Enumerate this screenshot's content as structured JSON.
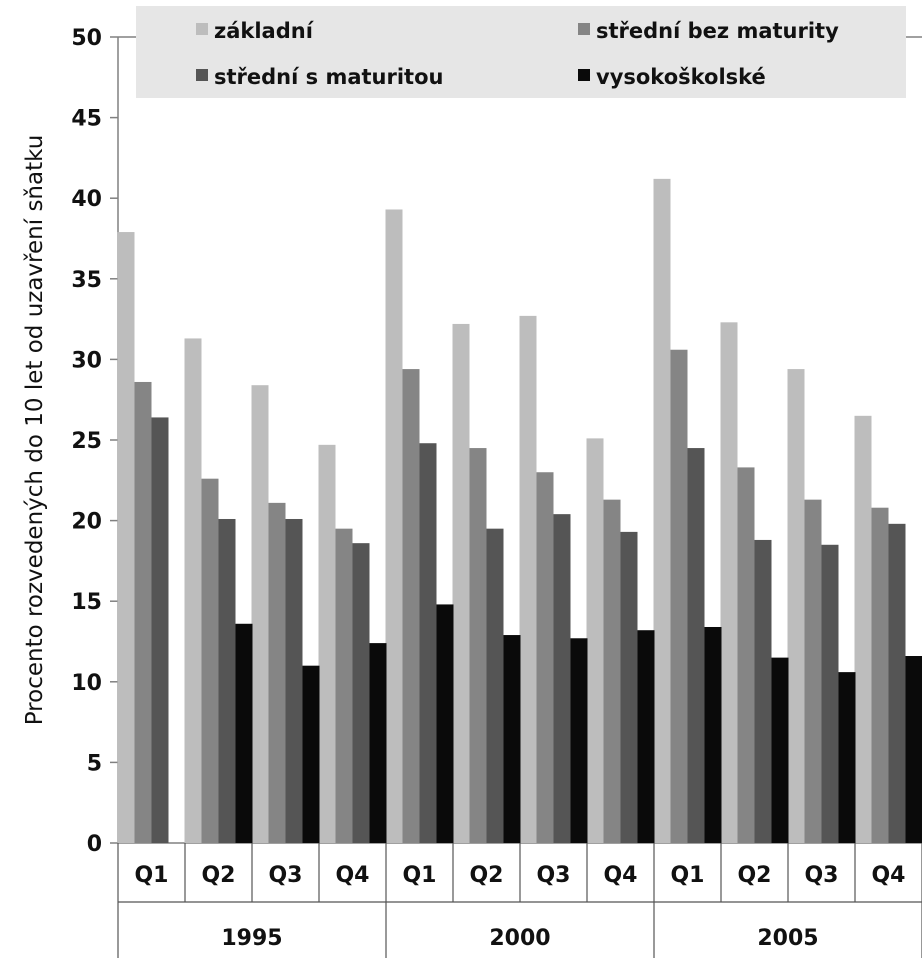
{
  "chart_data": {
    "type": "bar",
    "title": "",
    "xlabel": "",
    "ylabel": "Procento rozvedených do 10 let od uzavření sňatku",
    "ylim": [
      0,
      50
    ],
    "yticks": [
      0,
      5,
      10,
      15,
      20,
      25,
      30,
      35,
      40,
      45,
      50
    ],
    "grid": false,
    "legend_position": "top",
    "groups": [
      "1995",
      "2000",
      "2005"
    ],
    "categories": [
      "Q1",
      "Q2",
      "Q3",
      "Q4",
      "Q1",
      "Q2",
      "Q3",
      "Q4",
      "Q1",
      "Q2",
      "Q3",
      "Q4"
    ],
    "series": [
      {
        "name": "základní",
        "color": "#bdbdbd",
        "values": [
          37.9,
          31.3,
          28.4,
          24.7,
          39.3,
          32.2,
          32.7,
          25.1,
          41.2,
          32.3,
          29.4,
          26.5
        ]
      },
      {
        "name": "střední bez maturity",
        "color": "#858585",
        "values": [
          28.6,
          22.6,
          21.1,
          19.5,
          29.4,
          24.5,
          23.0,
          21.3,
          30.6,
          23.3,
          21.3,
          20.8
        ]
      },
      {
        "name": "střední s maturitou",
        "color": "#555555",
        "values": [
          26.4,
          20.1,
          20.1,
          18.6,
          24.8,
          19.5,
          20.4,
          19.3,
          24.5,
          18.8,
          18.5,
          19.8
        ]
      },
      {
        "name": "vysokoškolské",
        "color": "#0a0a0a",
        "values": [
          null,
          13.6,
          11.0,
          12.4,
          14.8,
          12.9,
          12.7,
          13.2,
          13.4,
          11.5,
          10.6,
          11.6
        ]
      }
    ]
  }
}
